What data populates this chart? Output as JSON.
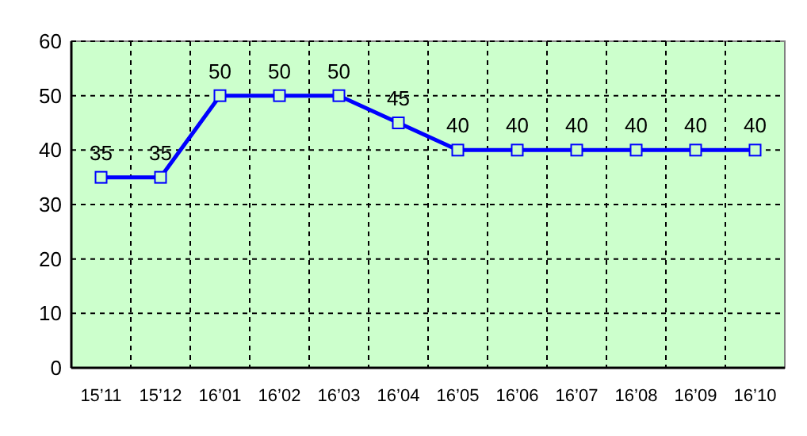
{
  "chart_data": {
    "type": "line",
    "categories": [
      "15’11",
      "15’12",
      "16’01",
      "16’02",
      "16’03",
      "16’04",
      "16’05",
      "16’06",
      "16’07",
      "16’08",
      "16’09",
      "16’10"
    ],
    "series": [
      {
        "color": "#0000ff",
        "values": [
          35,
          35,
          50,
          50,
          50,
          45,
          40,
          40,
          40,
          40,
          40,
          40
        ]
      }
    ],
    "ylim": [
      0,
      60
    ],
    "yticks": [
      0,
      10,
      20,
      30,
      40,
      50,
      60
    ],
    "grid": true,
    "marker": "square",
    "line_style": "solid",
    "data_labels": true
  }
}
